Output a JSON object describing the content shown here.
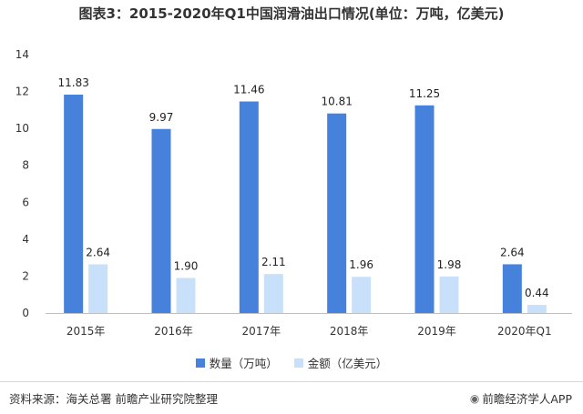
{
  "title": "图表3：2015-2020年Q1中国润滑油出口情况(单位：万吨，亿美元)",
  "colors": {
    "series1": "#4682dc",
    "series2": "#c9e0fa",
    "axis": "#bfbfbf"
  },
  "chart_data": {
    "type": "bar",
    "categories": [
      "2015年",
      "2016年",
      "2017年",
      "2018年",
      "2019年",
      "2020年Q1"
    ],
    "series": [
      {
        "name": "数量（万吨）",
        "values": [
          11.83,
          9.97,
          11.46,
          10.81,
          11.25,
          2.64
        ],
        "labels": [
          "11.83",
          "9.97",
          "11.46",
          "10.81",
          "11.25",
          "2.64"
        ]
      },
      {
        "name": "金额（亿美元）",
        "values": [
          2.64,
          1.9,
          2.11,
          1.96,
          1.98,
          0.44
        ],
        "labels": [
          "2.64",
          "1.90",
          "2.11",
          "1.96",
          "1.98",
          "0.44"
        ]
      }
    ],
    "yticks": [
      "0",
      "2",
      "4",
      "6",
      "8",
      "10",
      "12",
      "14"
    ],
    "ylim": [
      0,
      14
    ],
    "grid": false,
    "legend_position": "bottom"
  },
  "legend": {
    "item1": "数量（万吨）",
    "item2": "金额（亿美元）"
  },
  "footer": {
    "source": "资料来源：海关总署 前瞻产业研究院整理",
    "brand": "前瞻经济学人APP",
    "brand_icon": "wechat-icon"
  }
}
